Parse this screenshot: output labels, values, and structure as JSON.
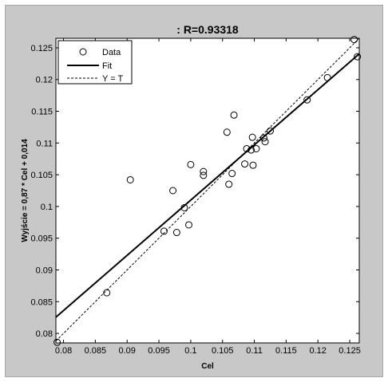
{
  "chart_data": {
    "type": "scatter",
    "title": ": R=0.93318",
    "xlabel": "Cel",
    "ylabel": "Wyjście = 0,87 * Cel + 0,014",
    "xlim": [
      0.0788,
      0.1265
    ],
    "ylim": [
      0.0785,
      0.1265
    ],
    "xticks": [
      0.08,
      0.085,
      0.09,
      0.095,
      0.1,
      0.105,
      0.11,
      0.115,
      0.12,
      0.125
    ],
    "yticks": [
      0.08,
      0.085,
      0.09,
      0.095,
      0.1,
      0.105,
      0.11,
      0.115,
      0.12,
      0.125
    ],
    "xtick_labels": [
      "0.08",
      "0.085",
      "0.09",
      "0.095",
      "0.1",
      "0.105",
      "0.11",
      "0.115",
      "0.12",
      "0.125"
    ],
    "ytick_labels": [
      "0.08",
      "0.085",
      "0.09",
      "0.095",
      "0.1",
      "0.105",
      "0.11",
      "0.115",
      "0.12",
      "0.125"
    ],
    "legend_position": "top-left",
    "legend": [
      "Data",
      "Fit",
      "Y = T"
    ],
    "points": [
      {
        "x": 0.079,
        "y": 0.0786
      },
      {
        "x": 0.0868,
        "y": 0.0864
      },
      {
        "x": 0.0905,
        "y": 0.1042
      },
      {
        "x": 0.0958,
        "y": 0.0961
      },
      {
        "x": 0.0972,
        "y": 0.1025
      },
      {
        "x": 0.0978,
        "y": 0.0959
      },
      {
        "x": 0.099,
        "y": 0.0998
      },
      {
        "x": 0.0997,
        "y": 0.0971
      },
      {
        "x": 0.1,
        "y": 0.1066
      },
      {
        "x": 0.102,
        "y": 0.1049
      },
      {
        "x": 0.102,
        "y": 0.1055
      },
      {
        "x": 0.1057,
        "y": 0.1117
      },
      {
        "x": 0.106,
        "y": 0.1035
      },
      {
        "x": 0.1065,
        "y": 0.1052
      },
      {
        "x": 0.1068,
        "y": 0.1144
      },
      {
        "x": 0.1085,
        "y": 0.1067
      },
      {
        "x": 0.1088,
        "y": 0.1091
      },
      {
        "x": 0.1095,
        "y": 0.1089
      },
      {
        "x": 0.1097,
        "y": 0.1109
      },
      {
        "x": 0.1098,
        "y": 0.1065
      },
      {
        "x": 0.1103,
        "y": 0.1091
      },
      {
        "x": 0.1115,
        "y": 0.1108
      },
      {
        "x": 0.1117,
        "y": 0.1102
      },
      {
        "x": 0.1125,
        "y": 0.1119
      },
      {
        "x": 0.1183,
        "y": 0.1168
      },
      {
        "x": 0.1215,
        "y": 0.1203
      },
      {
        "x": 0.1257,
        "y": 0.1263
      },
      {
        "x": 0.1262,
        "y": 0.1236
      }
    ],
    "series": [
      {
        "name": "Fit",
        "slope": 0.87,
        "intercept": 0.014,
        "style": "solid"
      },
      {
        "name": "Y = T",
        "slope": 1,
        "intercept": 0,
        "style": "dashed"
      }
    ],
    "colors": {
      "background": "#c8c8c8",
      "axes": "#ffffff",
      "ink": "#000000"
    }
  }
}
